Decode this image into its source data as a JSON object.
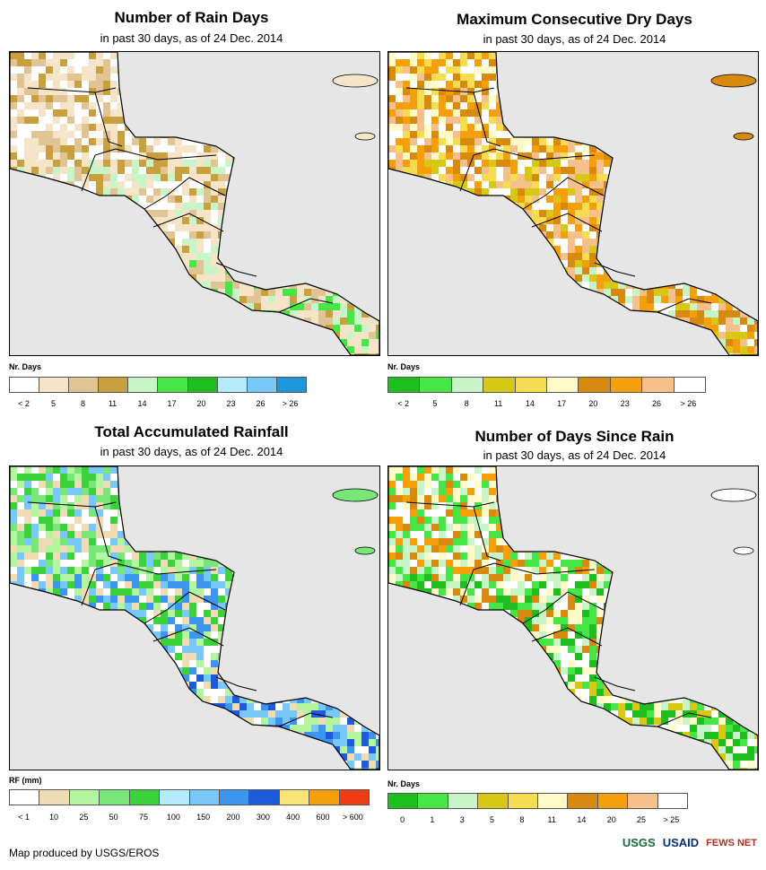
{
  "panels": [
    {
      "title": "Number of Rain Days",
      "subtitle": "in past 30 days, as of 24 Dec. 2014",
      "legend_label": "Nr. Days",
      "legend_colors": [
        "#ffffff",
        "#f5e4c8",
        "#e0c494",
        "#c8a040",
        "#c8f5c8",
        "#46e646",
        "#1fbe1f",
        "#b4ebfa",
        "#78c8fa",
        "#1e96dc"
      ],
      "ticks": [
        "< 2",
        "5",
        "8",
        "11",
        "14",
        "17",
        "20",
        "23",
        "26",
        "> 26"
      ]
    },
    {
      "title": "Maximum Consecutive Dry Days",
      "subtitle": "in past 30 days, as of 24 Dec. 2014",
      "legend_label": "Nr. Days",
      "legend_colors": [
        "#1fbe1f",
        "#46e646",
        "#c8f5c8",
        "#d6c814",
        "#f5dc50",
        "#fffac8",
        "#d88a10",
        "#f5a00a",
        "#f5c08c",
        "#ffffff"
      ],
      "ticks": [
        "< 2",
        "5",
        "8",
        "11",
        "14",
        "17",
        "20",
        "23",
        "26",
        "> 26"
      ]
    },
    {
      "title": "Total Accumulated Rainfall",
      "subtitle": "in past 30 days, as of 24 Dec. 2014",
      "legend_label": "RF (mm)",
      "legend_colors": [
        "#ffffff",
        "#f0dcb4",
        "#b4f5a0",
        "#78e678",
        "#3cd23c",
        "#b4ebfa",
        "#78c8fa",
        "#3c96f0",
        "#1e5adc",
        "#fae678",
        "#f5a00a",
        "#f03c14"
      ],
      "ticks": [
        "< 1",
        "10",
        "25",
        "50",
        "75",
        "100",
        "150",
        "200",
        "300",
        "400",
        "600",
        "> 600"
      ]
    },
    {
      "title": "Number of Days Since Rain",
      "subtitle": "in past 30 days, as of 24 Dec. 2014",
      "legend_label": "Nr. Days",
      "legend_colors": [
        "#1fbe1f",
        "#46e646",
        "#c8f5c8",
        "#d6c814",
        "#f5dc50",
        "#fffac8",
        "#d88a10",
        "#f5a00a",
        "#f5c08c",
        "#ffffff"
      ],
      "ticks": [
        "0",
        "1",
        "3",
        "5",
        "8",
        "11",
        "14",
        "20",
        "25",
        "> 25"
      ]
    }
  ],
  "footer": "Map produced by USGS/EROS",
  "logos": {
    "usgs": "USGS",
    "usaid": "USAID",
    "fews": "FEWS NET"
  }
}
